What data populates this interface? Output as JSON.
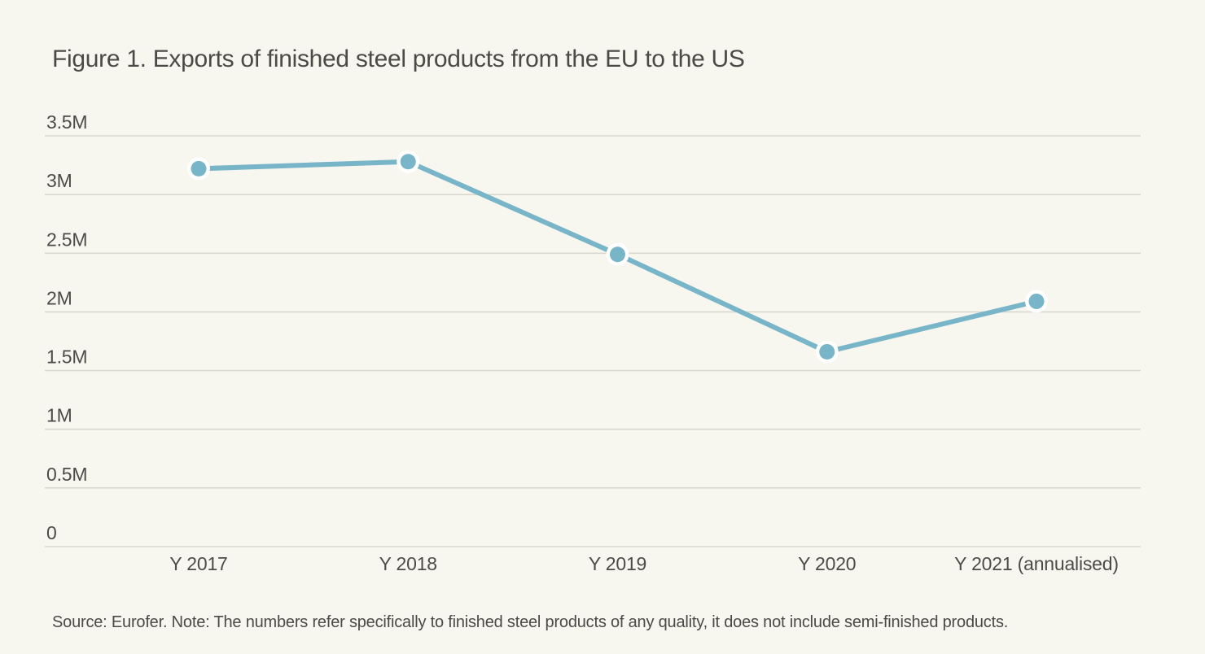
{
  "title": "Figure 1. Exports of finished steel products from the EU to the US",
  "source_note": "Source: Eurofer. Note: The numbers refer specifically to finished steel products of any quality, it does not include semi-finished products.",
  "colors": {
    "background": "#f7f6ef",
    "line": "#78b5c8",
    "point_fill": "#78b5c8",
    "point_halo": "#ffffff",
    "gridline": "#d9d8d0",
    "text": "#4c4b49"
  },
  "chart_data": {
    "type": "line",
    "categories": [
      "Y 2017",
      "Y 2018",
      "Y 2019",
      "Y 2020",
      "Y 2021 (annualised)"
    ],
    "values": [
      3.22,
      3.28,
      2.49,
      1.66,
      2.09
    ],
    "values_unit": "millions",
    "title": "Figure 1. Exports of finished steel products from the EU to the US",
    "xlabel": "",
    "ylabel": "",
    "ylim": [
      0,
      3.5
    ],
    "ytick_values": [
      0,
      0.5,
      1,
      1.5,
      2,
      2.5,
      3,
      3.5
    ],
    "ytick_labels": [
      "0",
      "0.5M",
      "1M",
      "1.5M",
      "2M",
      "2.5M",
      "3M",
      "3.5M"
    ],
    "grid": true,
    "legend": false,
    "markers": true
  }
}
